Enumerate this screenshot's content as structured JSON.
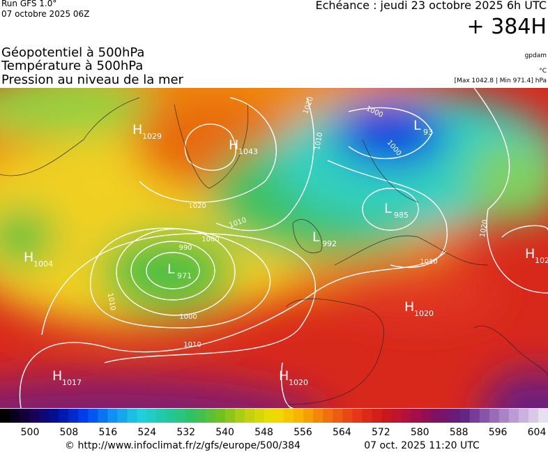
{
  "header": {
    "run": "Run GFS 1.0°",
    "date": "07 octobre 2025 06Z",
    "echeance": "Echéance : jeudi 23 octobre 2025 6h UTC",
    "lead": "+ 384H"
  },
  "fields": [
    "Géopotentiel à 500hPa",
    "Température à 500hPa",
    "Pression au niveau de la mer"
  ],
  "units": {
    "geopotential": "gpdam",
    "temperature": "°C",
    "pressure": "[Max 1042.8 | Min 971.4] hPa"
  },
  "centers": [
    {
      "type": "H",
      "value": 1029
    },
    {
      "type": "H",
      "value": 1043
    },
    {
      "type": "L",
      "value": 93
    },
    {
      "type": "L",
      "value": 985
    },
    {
      "type": "L",
      "value": 992
    },
    {
      "type": "L",
      "value": 971
    },
    {
      "type": "H",
      "value": 1004
    },
    {
      "type": "H",
      "value": 102
    },
    {
      "type": "H",
      "value": 1020
    },
    {
      "type": "H",
      "value": 1017
    },
    {
      "type": "H",
      "value": 1020
    }
  ],
  "isobar_labels": [
    1020,
    1000,
    1010,
    1000,
    1020,
    1010,
    1000,
    990,
    1010,
    1000,
    1010,
    1010,
    1020
  ],
  "colorbar": {
    "ticks": [
      500,
      508,
      516,
      524,
      532,
      540,
      548,
      556,
      564,
      572,
      580,
      588,
      596,
      604
    ]
  },
  "footer": {
    "url": "© http://www.infoclimat.fr/z/gfs/europe/500/384",
    "timestamp": "07 oct. 2025 11:20 UTC"
  }
}
